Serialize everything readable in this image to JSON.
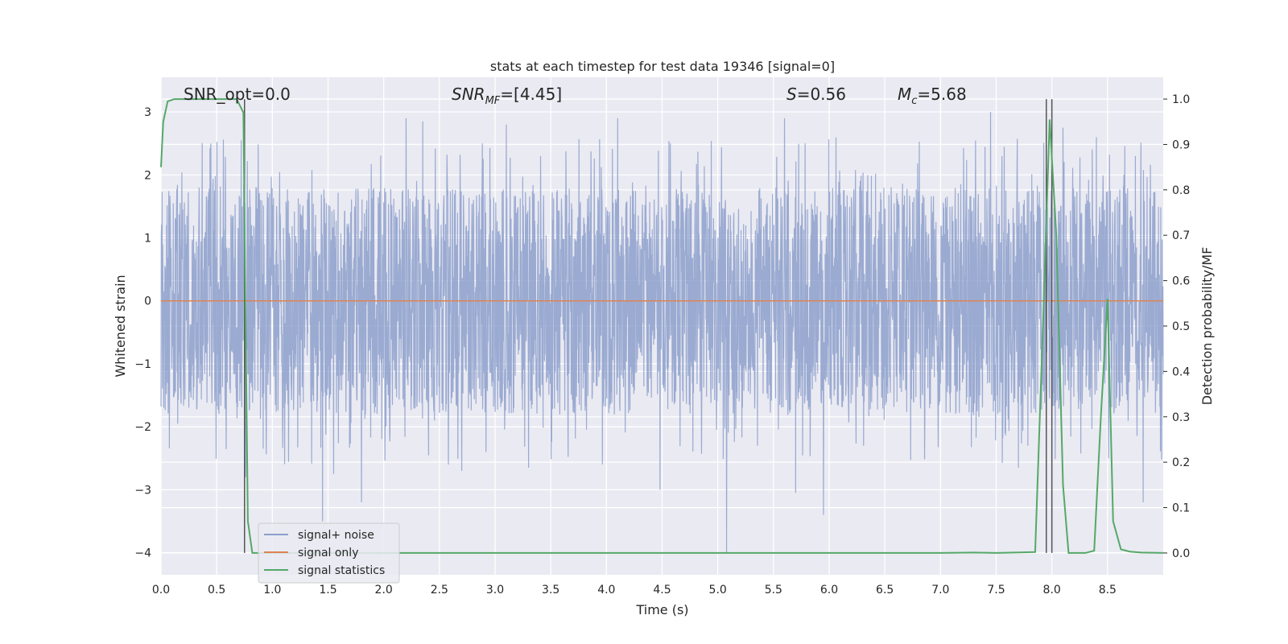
{
  "chart_data": {
    "type": "line",
    "title": "stats at each timestep for test data 19346 [signal=0]",
    "xlabel": "Time (s)",
    "ylabel": "Whitened strain",
    "y2label": "Detection probability/MF",
    "xlim": [
      0.0,
      9.0
    ],
    "ylim": [
      -4.35,
      3.55
    ],
    "y2lim": [
      -0.048,
      1.048
    ],
    "xticks": [
      "0.0",
      "0.5",
      "1.0",
      "1.5",
      "2.0",
      "2.5",
      "3.0",
      "3.5",
      "4.0",
      "4.5",
      "5.0",
      "5.5",
      "6.0",
      "6.5",
      "7.0",
      "7.5",
      "8.0",
      "8.5"
    ],
    "yticks": [
      "3",
      "2",
      "1",
      "0",
      "−1",
      "−2",
      "−3",
      "−4"
    ],
    "y2ticks": [
      "1.0",
      "0.9",
      "0.8",
      "0.7",
      "0.6",
      "0.5",
      "0.4",
      "0.3",
      "0.2",
      "0.1",
      "0.0"
    ],
    "grid": true,
    "legend_position": "lower-left",
    "annotations": {
      "snr_opt": "SNR_opt=0.0",
      "snr_mf_base": "SNR",
      "snr_mf_sub": "MF",
      "snr_mf_value": "=[4.45]",
      "s_label": "S",
      "s_value": "=0.56",
      "mc_base": "M",
      "mc_sub": "c",
      "mc_value": "=5.68"
    },
    "series": [
      {
        "name": "signal+ noise",
        "color": "#8c9fcb",
        "style": "noise",
        "seed": 19346,
        "points": 3600,
        "typical_range": [
          -1.8,
          1.8
        ],
        "extremes": [
          [
            0.72,
            2.55
          ],
          [
            0.76,
            -2.8
          ],
          [
            1.45,
            -3.5
          ],
          [
            1.55,
            -2.75
          ],
          [
            1.8,
            -3.2
          ],
          [
            2.2,
            2.9
          ],
          [
            2.35,
            2.85
          ],
          [
            2.58,
            -2.6
          ],
          [
            2.7,
            -2.7
          ],
          [
            3.1,
            2.8
          ],
          [
            3.3,
            -2.65
          ],
          [
            4.1,
            2.9
          ],
          [
            4.48,
            -3.0
          ],
          [
            5.08,
            -4.0
          ],
          [
            5.6,
            2.9
          ],
          [
            5.7,
            -3.05
          ],
          [
            5.95,
            -3.4
          ],
          [
            7.45,
            3.0
          ],
          [
            7.7,
            -2.65
          ],
          [
            7.95,
            3.0
          ],
          [
            8.1,
            2.75
          ],
          [
            8.4,
            2.6
          ],
          [
            8.75,
            2.3
          ],
          [
            8.82,
            -3.2
          ]
        ]
      },
      {
        "name": "signal only",
        "color": "#dd8452",
        "x": [
          0.0,
          9.0
        ],
        "y": [
          0.0,
          0.0
        ]
      },
      {
        "name": "signal statistics",
        "color": "#55a868",
        "axis": "right",
        "x": [
          0.0,
          0.02,
          0.06,
          0.12,
          0.2,
          0.4,
          0.6,
          0.68,
          0.74,
          0.76,
          0.78,
          0.82,
          1.0,
          2.0,
          3.0,
          4.0,
          5.0,
          6.0,
          7.0,
          7.3,
          7.5,
          7.85,
          7.92,
          7.98,
          8.04,
          8.1,
          8.15,
          8.3,
          8.38,
          8.44,
          8.5,
          8.55,
          8.62,
          8.7,
          8.8,
          9.0
        ],
        "y": [
          0.85,
          0.95,
          0.995,
          1.0,
          1.0,
          1.0,
          1.0,
          1.0,
          0.97,
          0.5,
          0.07,
          0.0,
          0.0,
          0.0,
          0.0,
          0.0,
          0.0,
          0.0,
          0.0,
          0.001,
          0.0,
          0.002,
          0.5,
          0.955,
          0.7,
          0.15,
          0.0,
          0.0,
          0.005,
          0.3,
          0.56,
          0.07,
          0.008,
          0.003,
          0.001,
          0.0
        ]
      }
    ],
    "vertical_lines": [
      0.75,
      7.95,
      8.0
    ]
  }
}
